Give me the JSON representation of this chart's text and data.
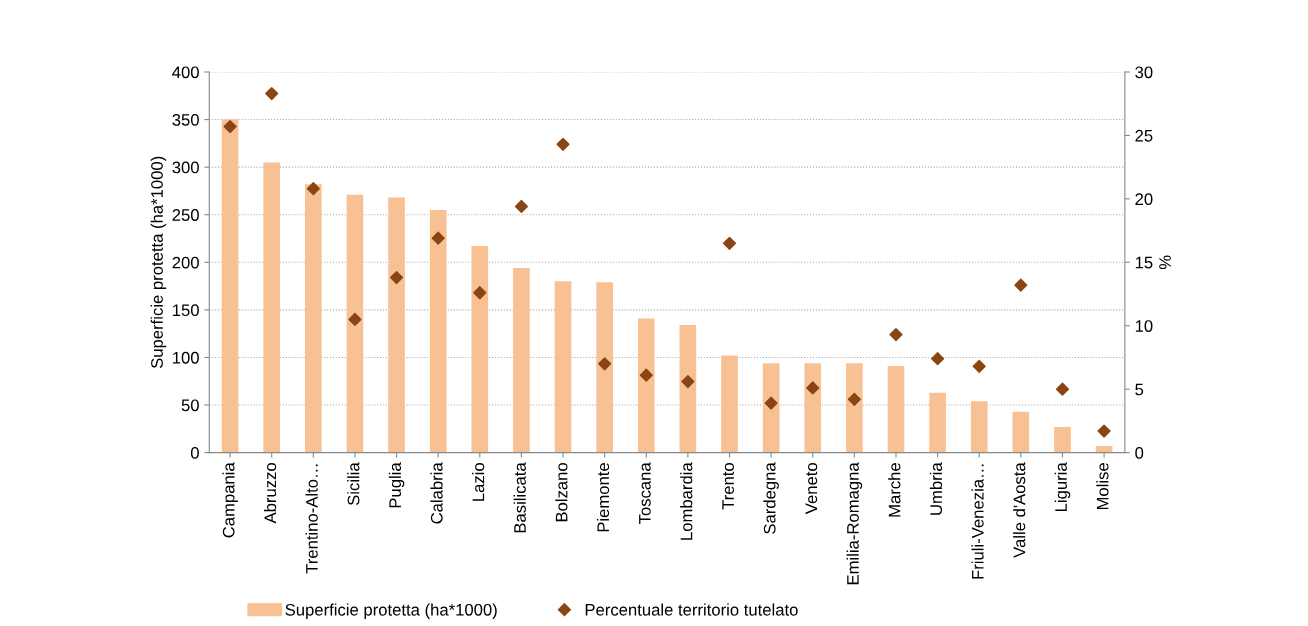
{
  "chart_data": {
    "type": "bar",
    "ylabel": "Superficie protetta (ha*1000)",
    "y2label": "%",
    "categories": [
      "Campania",
      "Abruzzo",
      "Trentino-Alto…",
      "Sicilia",
      "Puglia",
      "Calabria",
      "Lazio",
      "Basilicata",
      "Bolzano",
      "Piemonte",
      "Toscana",
      "Lombardia",
      "Trento",
      "Sardegna",
      "Veneto",
      "Emilia-Romagna",
      "Marche",
      "Umbria",
      "Friuli-Venezia…",
      "Valle d'Aosta",
      "Liguria",
      "Molise"
    ],
    "series": [
      {
        "name": "Superficie protetta (ha*1000)",
        "color": "#f8c194",
        "values": [
          350,
          305,
          282,
          271,
          268,
          255,
          217,
          194,
          180,
          179,
          141,
          134,
          102,
          94,
          94,
          94,
          91,
          63,
          54,
          43,
          27,
          7
        ]
      },
      {
        "name": "Percentuale territorio tutelato",
        "type": "scatter",
        "axis": "y2",
        "marker": "diamond",
        "color": "#8b4513",
        "values": [
          25.7,
          28.3,
          20.8,
          10.5,
          13.8,
          16.9,
          12.6,
          19.4,
          24.3,
          7.0,
          6.1,
          5.6,
          16.5,
          3.9,
          5.1,
          4.2,
          9.3,
          7.4,
          6.8,
          13.2,
          5.0,
          1.7
        ]
      }
    ],
    "ylim": [
      0,
      400
    ],
    "yticks": [
      0,
      50,
      100,
      150,
      200,
      250,
      300,
      350,
      400
    ],
    "y2lim": [
      0,
      30
    ],
    "y2ticks": [
      0,
      5,
      10,
      15,
      20,
      25,
      30
    ],
    "grid": "y",
    "legend": "bottom"
  }
}
